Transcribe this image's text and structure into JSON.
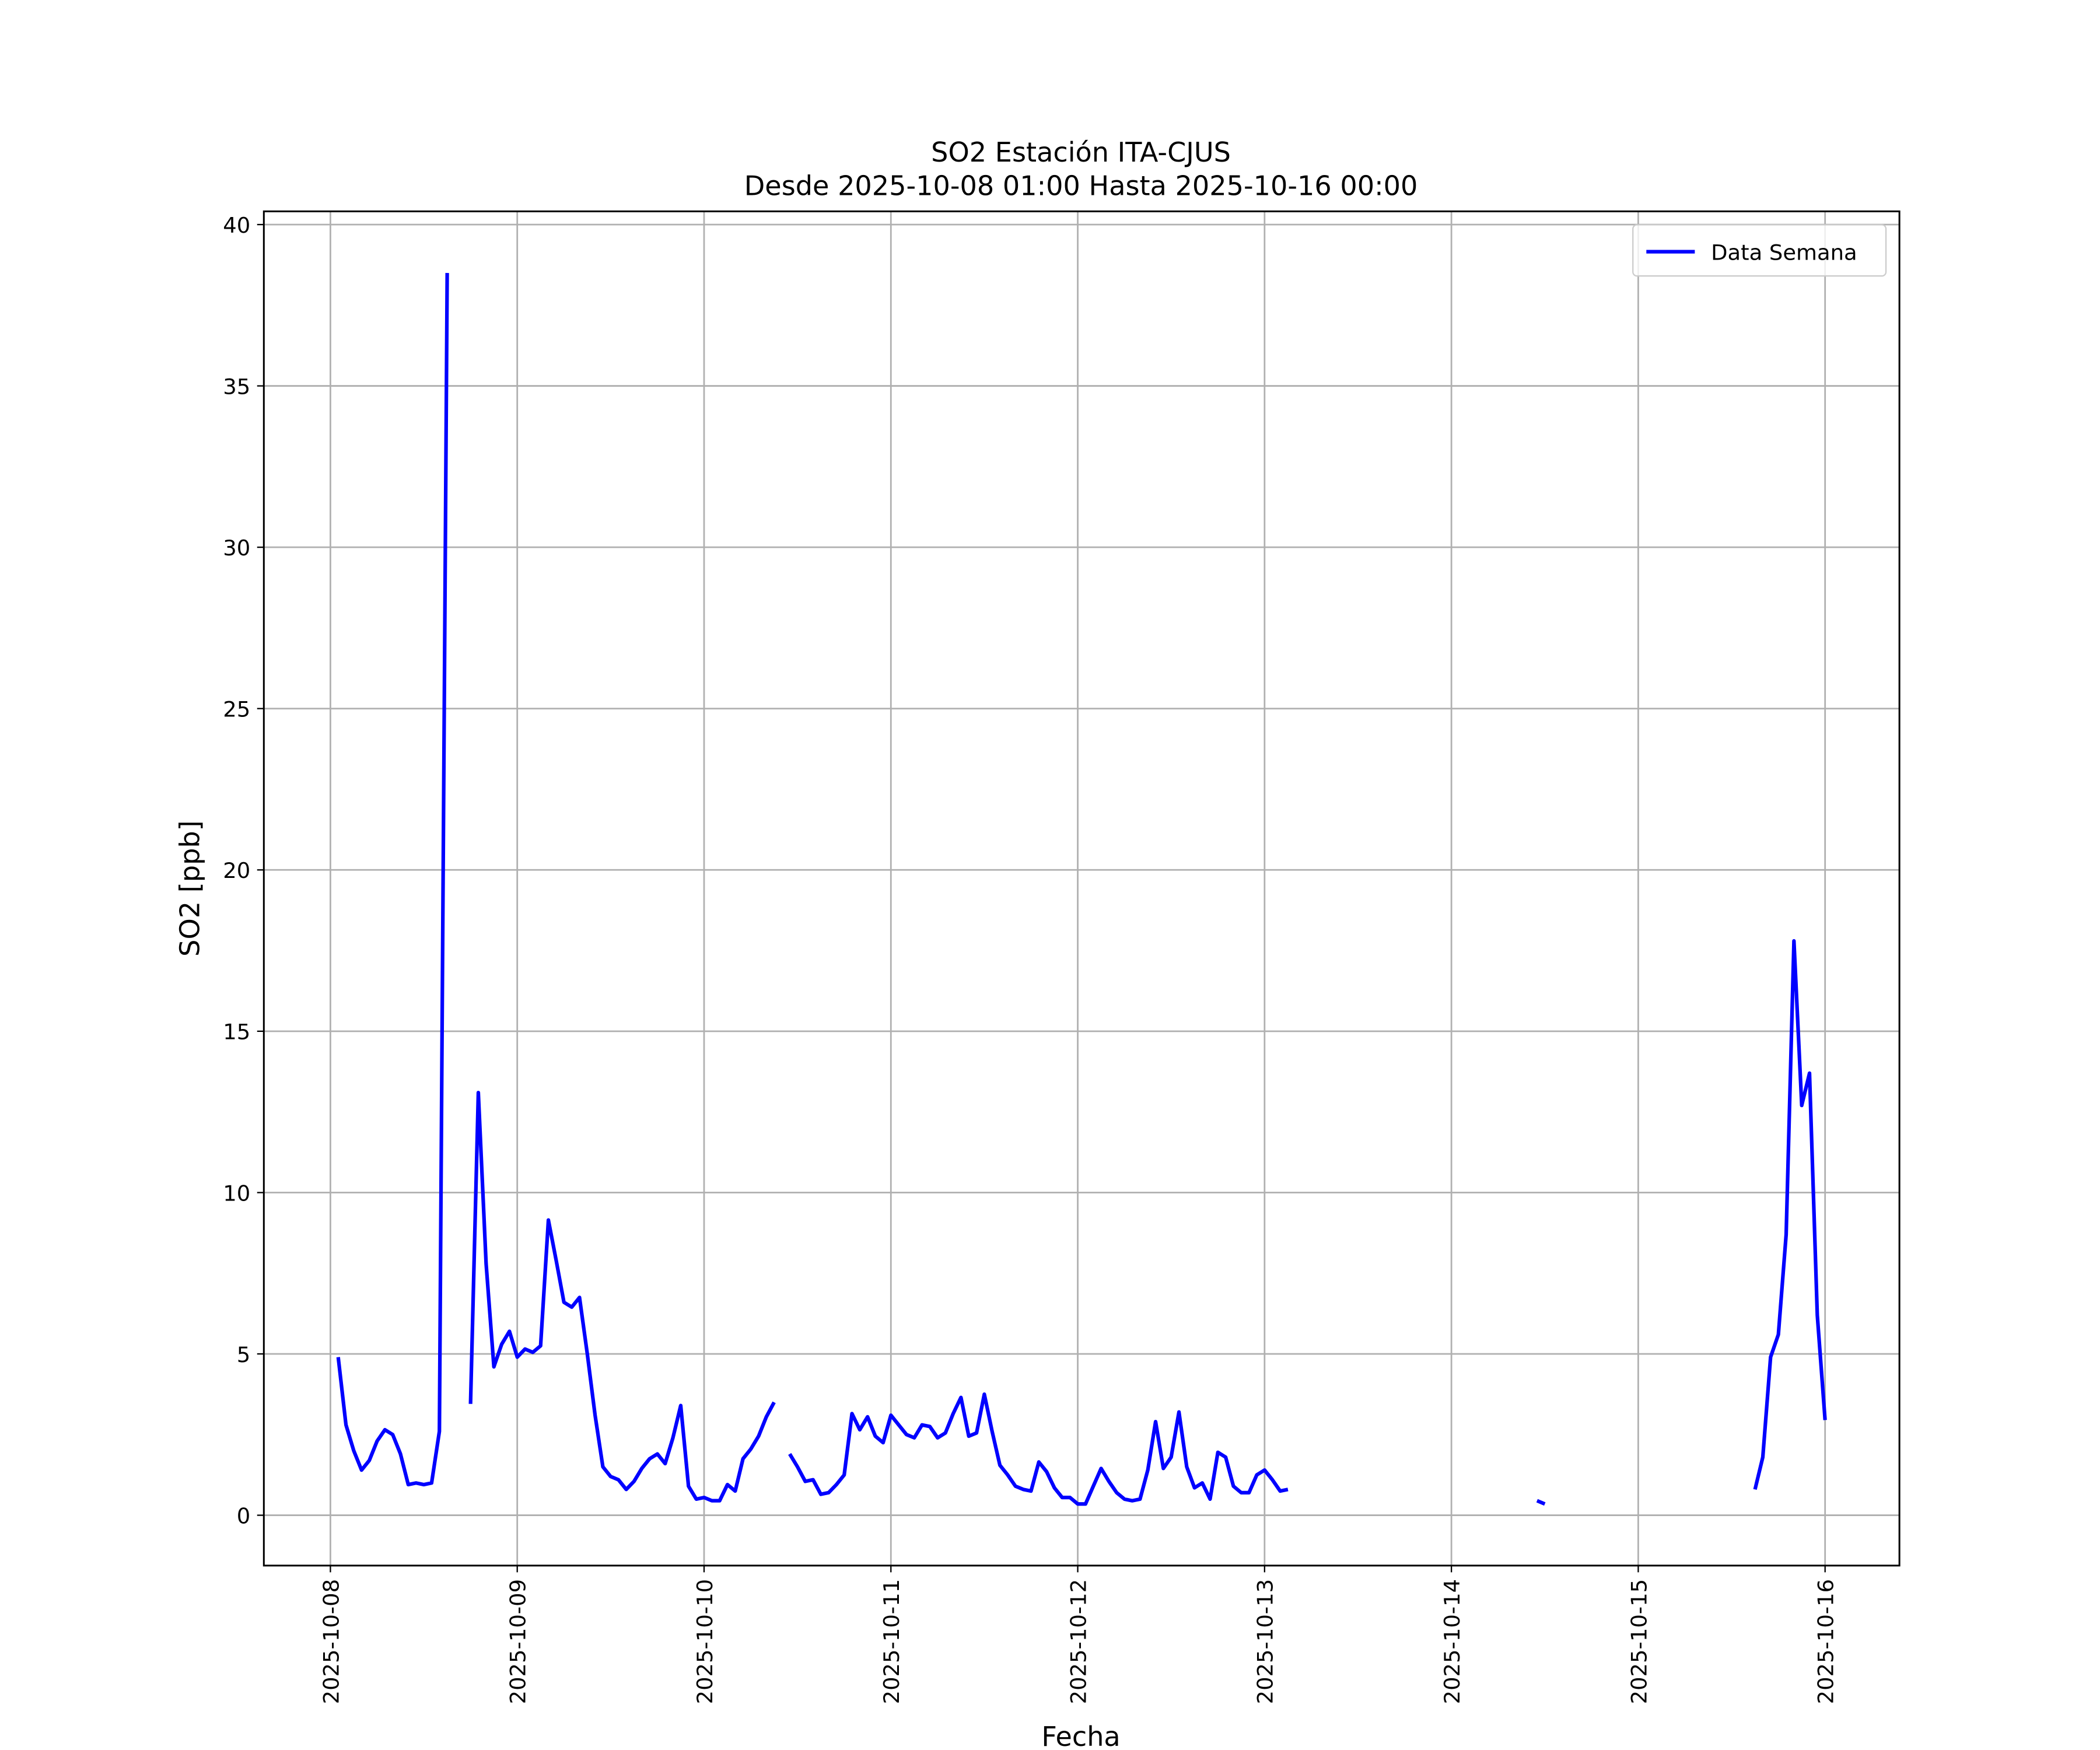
{
  "chart_data": {
    "type": "line",
    "title": "SO2 Estación ITA-CJUS",
    "subtitle": "Desde 2025-10-08 01:00 Hasta 2025-10-16 00:00",
    "x_label": "Fecha",
    "y_label": "SO2 [ppb]",
    "xlim": [
      "2025-10-07 15:27",
      "2025-10-16 09:33"
    ],
    "xticks": [
      "2025-10-08",
      "2025-10-09",
      "2025-10-10",
      "2025-10-11",
      "2025-10-12",
      "2025-10-13",
      "2025-10-14",
      "2025-10-15",
      "2025-10-16"
    ],
    "ylim": [
      -1.56,
      40.41
    ],
    "yticks": [
      0,
      5,
      10,
      15,
      20,
      25,
      30,
      35,
      40
    ],
    "grid": true,
    "legend": "upper right",
    "x": [
      "2025-10-08 01:00",
      "2025-10-08 02:00",
      "2025-10-08 03:00",
      "2025-10-08 04:00",
      "2025-10-08 05:00",
      "2025-10-08 06:00",
      "2025-10-08 07:00",
      "2025-10-08 08:00",
      "2025-10-08 09:00",
      "2025-10-08 10:00",
      "2025-10-08 11:00",
      "2025-10-08 12:00",
      "2025-10-08 13:00",
      "2025-10-08 14:00",
      "2025-10-08 15:00",
      "2025-10-08 16:00",
      "2025-10-08 17:00",
      "2025-10-08 18:00",
      "2025-10-08 19:00",
      "2025-10-08 20:00",
      "2025-10-08 21:00",
      "2025-10-08 22:00",
      "2025-10-08 23:00",
      "2025-10-09 00:00",
      "2025-10-09 01:00",
      "2025-10-09 02:00",
      "2025-10-09 03:00",
      "2025-10-09 04:00",
      "2025-10-09 05:00",
      "2025-10-09 06:00",
      "2025-10-09 07:00",
      "2025-10-09 08:00",
      "2025-10-09 09:00",
      "2025-10-09 10:00",
      "2025-10-09 11:00",
      "2025-10-09 12:00",
      "2025-10-09 13:00",
      "2025-10-09 14:00",
      "2025-10-09 15:00",
      "2025-10-09 16:00",
      "2025-10-09 17:00",
      "2025-10-09 18:00",
      "2025-10-09 19:00",
      "2025-10-09 20:00",
      "2025-10-09 21:00",
      "2025-10-09 22:00",
      "2025-10-09 23:00",
      "2025-10-10 00:00",
      "2025-10-10 01:00",
      "2025-10-10 02:00",
      "2025-10-10 03:00",
      "2025-10-10 04:00",
      "2025-10-10 05:00",
      "2025-10-10 06:00",
      "2025-10-10 07:00",
      "2025-10-10 08:00",
      "2025-10-10 09:00",
      "2025-10-10 10:00",
      "2025-10-10 11:00",
      "2025-10-10 12:00",
      "2025-10-10 13:00",
      "2025-10-10 14:00",
      "2025-10-10 15:00",
      "2025-10-10 16:00",
      "2025-10-10 17:00",
      "2025-10-10 18:00",
      "2025-10-10 19:00",
      "2025-10-10 20:00",
      "2025-10-10 21:00",
      "2025-10-10 22:00",
      "2025-10-10 23:00",
      "2025-10-11 00:00",
      "2025-10-11 01:00",
      "2025-10-11 02:00",
      "2025-10-11 03:00",
      "2025-10-11 04:00",
      "2025-10-11 05:00",
      "2025-10-11 06:00",
      "2025-10-11 07:00",
      "2025-10-11 08:00",
      "2025-10-11 09:00",
      "2025-10-11 10:00",
      "2025-10-11 11:00",
      "2025-10-11 12:00",
      "2025-10-11 13:00",
      "2025-10-11 14:00",
      "2025-10-11 15:00",
      "2025-10-11 16:00",
      "2025-10-11 17:00",
      "2025-10-11 18:00",
      "2025-10-11 19:00",
      "2025-10-11 20:00",
      "2025-10-11 21:00",
      "2025-10-11 22:00",
      "2025-10-11 23:00",
      "2025-10-12 00:00",
      "2025-10-12 01:00",
      "2025-10-12 02:00",
      "2025-10-12 03:00",
      "2025-10-12 04:00",
      "2025-10-12 05:00",
      "2025-10-12 06:00",
      "2025-10-12 07:00",
      "2025-10-12 08:00",
      "2025-10-12 09:00",
      "2025-10-12 10:00",
      "2025-10-12 11:00",
      "2025-10-12 12:00",
      "2025-10-12 13:00",
      "2025-10-12 14:00",
      "2025-10-12 15:00",
      "2025-10-12 16:00",
      "2025-10-12 17:00",
      "2025-10-12 18:00",
      "2025-10-12 19:00",
      "2025-10-12 20:00",
      "2025-10-12 21:00",
      "2025-10-12 22:00",
      "2025-10-12 23:00",
      "2025-10-13 00:00",
      "2025-10-13 01:00",
      "2025-10-13 02:00",
      "2025-10-13 03:00",
      "2025-10-13 04:00",
      "2025-10-13 05:00",
      "2025-10-13 06:00",
      "2025-10-13 07:00",
      "2025-10-13 08:00",
      "2025-10-13 09:00",
      "2025-10-13 10:00",
      "2025-10-13 11:00",
      "2025-10-13 12:00",
      "2025-10-13 13:00",
      "2025-10-13 14:00",
      "2025-10-13 15:00",
      "2025-10-13 16:00",
      "2025-10-13 17:00",
      "2025-10-13 18:00",
      "2025-10-13 19:00",
      "2025-10-13 20:00",
      "2025-10-13 21:00",
      "2025-10-13 22:00",
      "2025-10-13 23:00",
      "2025-10-14 00:00",
      "2025-10-14 01:00",
      "2025-10-14 02:00",
      "2025-10-14 03:00",
      "2025-10-14 04:00",
      "2025-10-14 05:00",
      "2025-10-14 06:00",
      "2025-10-14 07:00",
      "2025-10-14 08:00",
      "2025-10-14 09:00",
      "2025-10-14 10:00",
      "2025-10-14 11:00",
      "2025-10-14 12:00",
      "2025-10-14 13:00",
      "2025-10-14 14:00",
      "2025-10-14 15:00",
      "2025-10-14 16:00",
      "2025-10-14 17:00",
      "2025-10-14 18:00",
      "2025-10-14 19:00",
      "2025-10-14 20:00",
      "2025-10-14 21:00",
      "2025-10-14 22:00",
      "2025-10-14 23:00",
      "2025-10-15 00:00",
      "2025-10-15 01:00",
      "2025-10-15 02:00",
      "2025-10-15 03:00",
      "2025-10-15 04:00",
      "2025-10-15 05:00",
      "2025-10-15 06:00",
      "2025-10-15 07:00",
      "2025-10-15 08:00",
      "2025-10-15 09:00",
      "2025-10-15 10:00",
      "2025-10-15 11:00",
      "2025-10-15 12:00",
      "2025-10-15 13:00",
      "2025-10-15 14:00",
      "2025-10-15 15:00",
      "2025-10-15 16:00",
      "2025-10-15 17:00",
      "2025-10-15 18:00",
      "2025-10-15 19:00",
      "2025-10-15 20:00",
      "2025-10-15 21:00",
      "2025-10-15 22:00",
      "2025-10-15 23:00",
      "2025-10-16 00:00"
    ],
    "series": [
      {
        "name": "Data Semana",
        "color": "#0000ff",
        "values": [
          4.9,
          2.8,
          2.0,
          1.4,
          1.7,
          2.3,
          2.65,
          2.5,
          1.9,
          0.95,
          1.0,
          0.95,
          1.0,
          2.6,
          38.5,
          null,
          null,
          3.45,
          13.1,
          7.8,
          4.6,
          5.3,
          5.7,
          4.9,
          5.15,
          5.05,
          5.25,
          9.15,
          7.9,
          6.6,
          6.45,
          6.75,
          5.0,
          3.1,
          1.5,
          1.2,
          1.1,
          0.8,
          1.05,
          1.45,
          1.75,
          1.9,
          1.6,
          2.4,
          3.4,
          0.9,
          0.5,
          0.55,
          0.45,
          0.45,
          0.95,
          0.75,
          1.75,
          2.05,
          2.45,
          3.05,
          3.5,
          null,
          1.9,
          1.5,
          1.05,
          1.1,
          0.65,
          0.7,
          0.95,
          1.25,
          3.15,
          2.65,
          3.05,
          2.45,
          2.25,
          3.1,
          2.8,
          2.5,
          2.4,
          2.8,
          2.75,
          2.4,
          2.55,
          3.15,
          3.65,
          2.45,
          2.55,
          3.75,
          2.6,
          1.55,
          1.25,
          0.9,
          0.8,
          0.75,
          1.65,
          1.35,
          0.85,
          0.55,
          0.55,
          0.35,
          0.35,
          0.9,
          1.45,
          1.05,
          0.7,
          0.5,
          0.45,
          0.5,
          1.4,
          2.9,
          1.45,
          1.8,
          3.2,
          1.5,
          0.85,
          1.0,
          0.5,
          1.95,
          1.8,
          0.9,
          0.7,
          0.7,
          1.25,
          1.4,
          1.1,
          0.75,
          0.8,
          null,
          null,
          null,
          null,
          null,
          null,
          null,
          null,
          null,
          null,
          null,
          null,
          null,
          null,
          null,
          null,
          null,
          null,
          null,
          null,
          null,
          null,
          null,
          null,
          null,
          null,
          null,
          null,
          null,
          null,
          null,
          0.45,
          0.35,
          null,
          null,
          null,
          null,
          null,
          null,
          null,
          null,
          null,
          null,
          null,
          null,
          null,
          null,
          null,
          null,
          null,
          null,
          null,
          null,
          null,
          null,
          null,
          null,
          null,
          null,
          0.8,
          1.8,
          4.9,
          5.6,
          8.7,
          17.8,
          12.7,
          13.7,
          6.2,
          2.95
        ]
      }
    ]
  }
}
